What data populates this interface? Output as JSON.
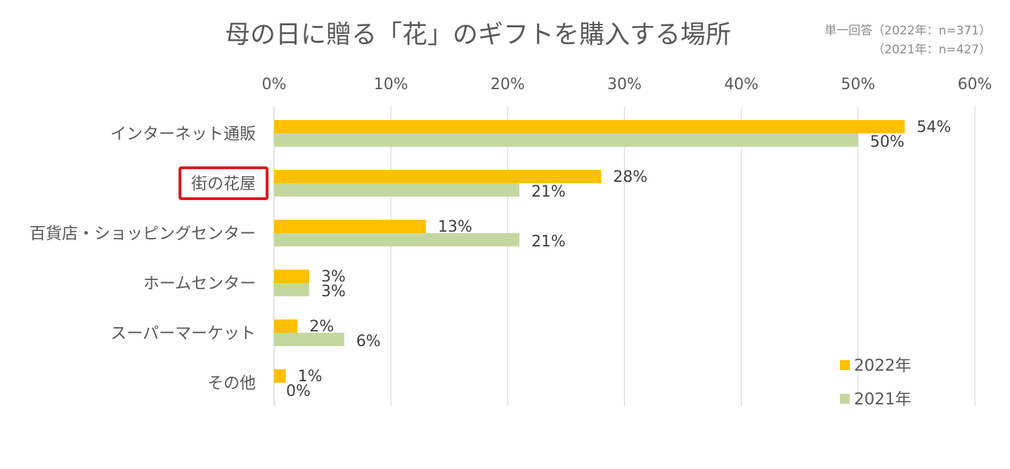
{
  "title": "母の日に贈る「花」のギフトを購入する場所",
  "sample_note": {
    "line1": "単一回答（2022年：n=371）",
    "line2": "（2021年：n=427）"
  },
  "colors": {
    "series_2022": "#FFC000",
    "series_2021": "#C5D7A0",
    "highlight_box": "#E0171A",
    "gridline": "#D9D9D9",
    "text": "#595959"
  },
  "chart_data": {
    "type": "bar",
    "orientation": "horizontal",
    "title": "母の日に贈る「花」のギフトを購入する場所",
    "categories": [
      "インターネット通販",
      "街の花屋",
      "百貨店・ショッピングセンター",
      "ホームセンター",
      "スーパーマーケット",
      "その他"
    ],
    "series": [
      {
        "name": "2022年",
        "values": [
          54,
          28,
          13,
          3,
          2,
          1
        ],
        "labels": [
          "54%",
          "28%",
          "13%",
          "3%",
          "2%",
          "1%"
        ]
      },
      {
        "name": "2021年",
        "values": [
          50,
          21,
          21,
          3,
          6,
          0
        ],
        "labels": [
          "50%",
          "21%",
          "21%",
          "3%",
          "6%",
          "0%"
        ]
      }
    ],
    "xlim": [
      0,
      60
    ],
    "x_ticks": [
      "0%",
      "10%",
      "20%",
      "30%",
      "40%",
      "50%",
      "60%"
    ],
    "x_axis_position": "top",
    "grid": true,
    "legend_position": "bottom-right",
    "highlighted_category": "街の花屋"
  }
}
